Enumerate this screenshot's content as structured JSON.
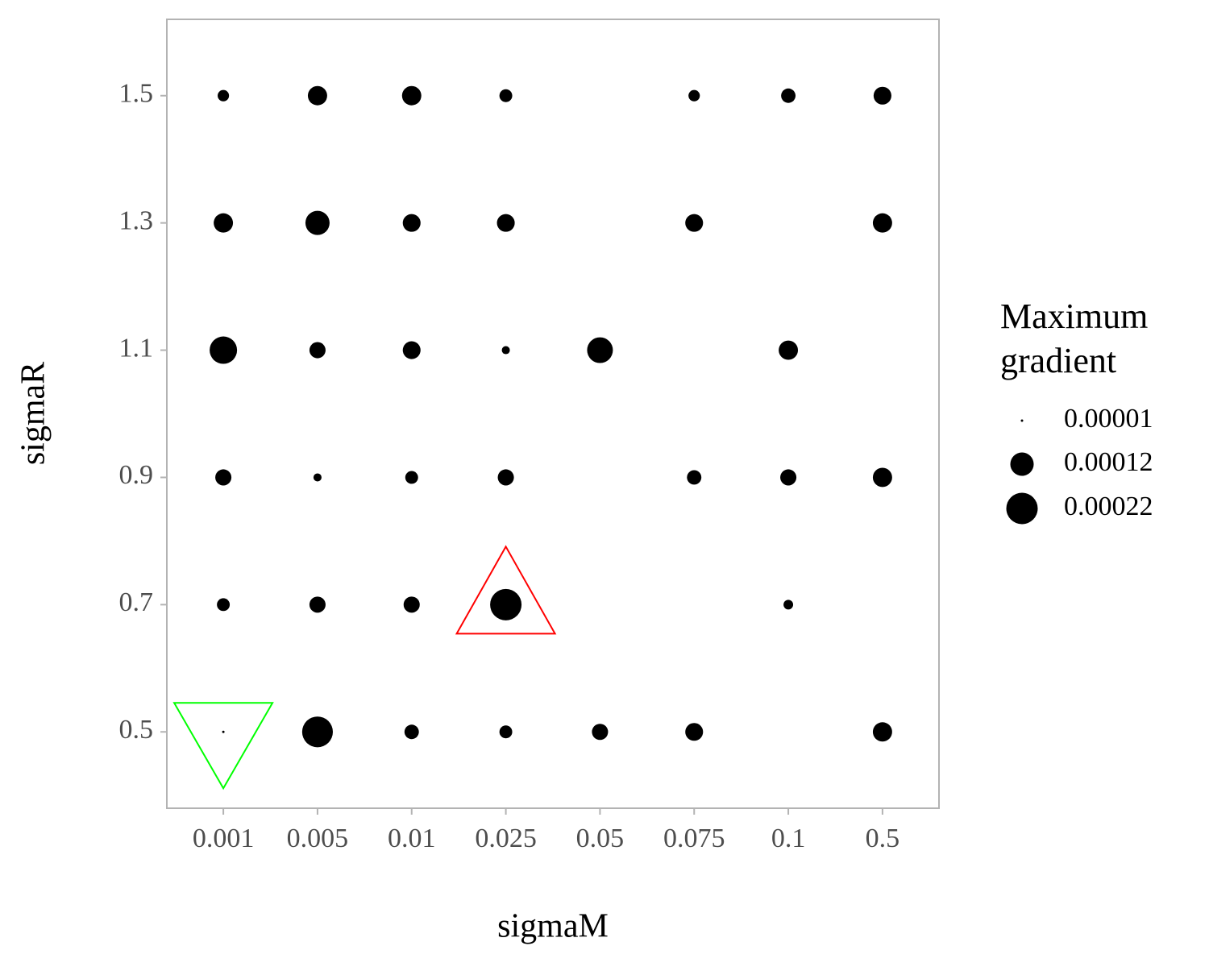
{
  "chart_data": {
    "type": "bubble",
    "x_label": "sigmaM",
    "y_label": "sigmaR",
    "categories": [
      "0.001",
      "0.005",
      "0.01",
      "0.025",
      "0.05",
      "0.075",
      "0.1",
      "0.5"
    ],
    "ylim": [
      0.38,
      1.62
    ],
    "yticks": [
      0.5,
      0.7,
      0.9,
      1.1,
      1.3,
      1.5
    ],
    "color": "#000000",
    "grid": false,
    "series": [
      {
        "y": 1.5,
        "values": [
          3e-05,
          8.1e-05,
          8.1e-05,
          3.7e-05,
          null,
          3e-05,
          4.6e-05,
          6.9e-05
        ]
      },
      {
        "y": 1.3,
        "values": [
          8.1e-05,
          0.000128,
          6.9e-05,
          6.9e-05,
          null,
          6.9e-05,
          null,
          8.1e-05
        ]
      },
      {
        "y": 1.1,
        "values": [
          0.000166,
          5.7e-05,
          6.9e-05,
          1.8e-05,
          0.000146,
          null,
          8.1e-05,
          null
        ]
      },
      {
        "y": 0.9,
        "values": [
          5.7e-05,
          1.8e-05,
          3.7e-05,
          5.7e-05,
          null,
          4.6e-05,
          5.7e-05,
          8.1e-05
        ]
      },
      {
        "y": 0.7,
        "values": [
          3.7e-05,
          5.7e-05,
          5.7e-05,
          0.00022,
          null,
          null,
          2.3e-05,
          null
        ]
      },
      {
        "y": 0.5,
        "values": [
          1e-05,
          0.00021,
          4.6e-05,
          3.7e-05,
          5.7e-05,
          6.9e-05,
          null,
          8.1e-05
        ]
      }
    ],
    "size_legend": {
      "title": [
        "Maximum",
        "gradient"
      ],
      "values": [
        1e-05,
        0.00012,
        0.00022
      ]
    },
    "highlights": [
      {
        "category": "0.025",
        "y": 0.7,
        "shape": "triangle-up",
        "color": "#ff0000"
      },
      {
        "category": "0.001",
        "y": 0.5,
        "shape": "triangle-down",
        "color": "#00ff00"
      }
    ]
  }
}
